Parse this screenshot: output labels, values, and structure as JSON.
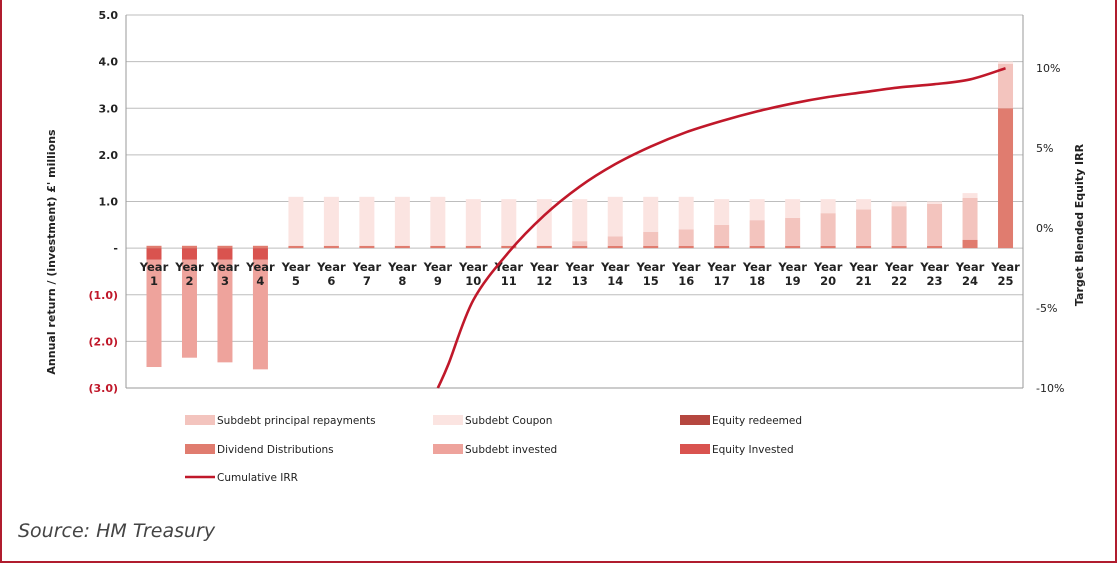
{
  "source_text": "Source:  HM Treasury",
  "chart_data": {
    "type": "bar",
    "stacked": true,
    "categories": [
      "Year 1",
      "Year 2",
      "Year 3",
      "Year 4",
      "Year 5",
      "Year 6",
      "Year 7",
      "Year 8",
      "Year 9",
      "Year 10",
      "Year 11",
      "Year 12",
      "Year 13",
      "Year 14",
      "Year 15",
      "Year 16",
      "Year 17",
      "Year 18",
      "Year 19",
      "Year 20",
      "Year 21",
      "Year 22",
      "Year 23",
      "Year 24",
      "Year 25"
    ],
    "category_lines": [
      [
        "Year",
        "1"
      ],
      [
        "Year",
        "2"
      ],
      [
        "Year",
        "3"
      ],
      [
        "Year",
        "4"
      ],
      [
        "Year",
        "5"
      ],
      [
        "Year",
        "6"
      ],
      [
        "Year",
        "7"
      ],
      [
        "Year",
        "8"
      ],
      [
        "Year",
        "9"
      ],
      [
        "Year",
        "10"
      ],
      [
        "Year",
        "11"
      ],
      [
        "Year",
        "12"
      ],
      [
        "Year",
        "13"
      ],
      [
        "Year",
        "14"
      ],
      [
        "Year",
        "15"
      ],
      [
        "Year",
        "16"
      ],
      [
        "Year",
        "17"
      ],
      [
        "Year",
        "18"
      ],
      [
        "Year",
        "19"
      ],
      [
        "Year",
        "20"
      ],
      [
        "Year",
        "21"
      ],
      [
        "Year",
        "22"
      ],
      [
        "Year",
        "23"
      ],
      [
        "Year",
        "24"
      ],
      [
        "Year",
        "25"
      ]
    ],
    "ylabel": "Annual return / (investment) £' millions",
    "y2label": "Target Blended Equity IRR",
    "ylim": [
      -3.0,
      5.0
    ],
    "y2lim": [
      -10,
      13.33
    ],
    "yticks": [
      5.0,
      4.0,
      3.0,
      2.0,
      1.0,
      0,
      -1.0,
      -2.0,
      -3.0
    ],
    "ytick_labels": [
      "5.0",
      "4.0",
      "3.0",
      "2.0",
      "1.0",
      "-",
      "(1.0)",
      "(2.0)",
      "(3.0)"
    ],
    "y2ticks": [
      10,
      5,
      0,
      -5,
      -10
    ],
    "y2tick_labels": [
      "10%",
      "5%",
      "0%",
      "-5%",
      "-10%"
    ],
    "grid": true,
    "legend_position": "bottom",
    "series": [
      {
        "name": "Equity Invested",
        "color": "#d9534f",
        "values": [
          -0.25,
          -0.25,
          -0.25,
          -0.25,
          0,
          0,
          0,
          0,
          0,
          0,
          0,
          0,
          0,
          0,
          0,
          0,
          0,
          0,
          0,
          0,
          0,
          0,
          0,
          0,
          0
        ]
      },
      {
        "name": "Subdebt invested",
        "color": "#eea39c",
        "values": [
          -2.3,
          -2.1,
          -2.2,
          -2.35,
          0,
          0,
          0,
          0,
          0,
          0,
          0,
          0,
          0,
          0,
          0,
          0,
          0,
          0,
          0,
          0,
          0,
          0,
          0,
          0,
          0
        ]
      },
      {
        "name": "Equity redeemed",
        "color": "#b5473f",
        "values": [
          0,
          0,
          0,
          0,
          0,
          0,
          0,
          0,
          0,
          0,
          0,
          0,
          0,
          0,
          0,
          0,
          0,
          0,
          0,
          0,
          0,
          0,
          0,
          0,
          0
        ]
      },
      {
        "name": "Dividend Distributions",
        "color": "#e07c6f",
        "values": [
          0.05,
          0.05,
          0.05,
          0.05,
          0.05,
          0.05,
          0.05,
          0.05,
          0.05,
          0.05,
          0.05,
          0.05,
          0.05,
          0.05,
          0.05,
          0.05,
          0.05,
          0.05,
          0.05,
          0.05,
          0.05,
          0.05,
          0.05,
          0.18,
          3.0
        ]
      },
      {
        "name": "Subdebt principal repayments",
        "color": "#f3c4be",
        "values": [
          0,
          0,
          0,
          0,
          0,
          0,
          0,
          0,
          0,
          0,
          0,
          0,
          0.1,
          0.2,
          0.3,
          0.35,
          0.45,
          0.55,
          0.6,
          0.7,
          0.78,
          0.85,
          0.9,
          0.9,
          0.95
        ]
      },
      {
        "name": "Subdebt Coupon",
        "color": "#fbe4e1",
        "values": [
          0,
          0,
          0,
          0,
          1.05,
          1.05,
          1.05,
          1.05,
          1.05,
          1.0,
          1.0,
          1.0,
          0.9,
          0.85,
          0.75,
          0.7,
          0.55,
          0.45,
          0.4,
          0.3,
          0.22,
          0.1,
          0.05,
          0.1,
          0.05
        ]
      }
    ],
    "line_series": {
      "name": "Cumulative IRR",
      "axis": "right",
      "color": "#c0182a",
      "x": [
        9,
        9.3,
        10,
        11,
        12,
        13,
        14,
        15,
        16,
        17,
        18,
        19,
        20,
        21,
        22,
        23,
        24,
        25
      ],
      "values": [
        -10,
        -8.5,
        -4.5,
        -1.5,
        0.8,
        2.6,
        4.0,
        5.1,
        6.0,
        6.7,
        7.3,
        7.8,
        8.2,
        8.5,
        8.8,
        9.0,
        9.3,
        10.0
      ]
    },
    "legend": [
      {
        "label": "Subdebt principal repayments",
        "color": "#f3c4be",
        "kind": "box"
      },
      {
        "label": "Subdebt Coupon",
        "color": "#fbe4e1",
        "kind": "box"
      },
      {
        "label": "Equity redeemed",
        "color": "#b5473f",
        "kind": "box"
      },
      {
        "label": "Dividend Distributions",
        "color": "#e07c6f",
        "kind": "box"
      },
      {
        "label": "Subdebt invested",
        "color": "#eea39c",
        "kind": "box"
      },
      {
        "label": "Equity Invested",
        "color": "#d9534f",
        "kind": "box"
      },
      {
        "label": "Cumulative IRR",
        "color": "#c0182a",
        "kind": "line"
      }
    ]
  }
}
